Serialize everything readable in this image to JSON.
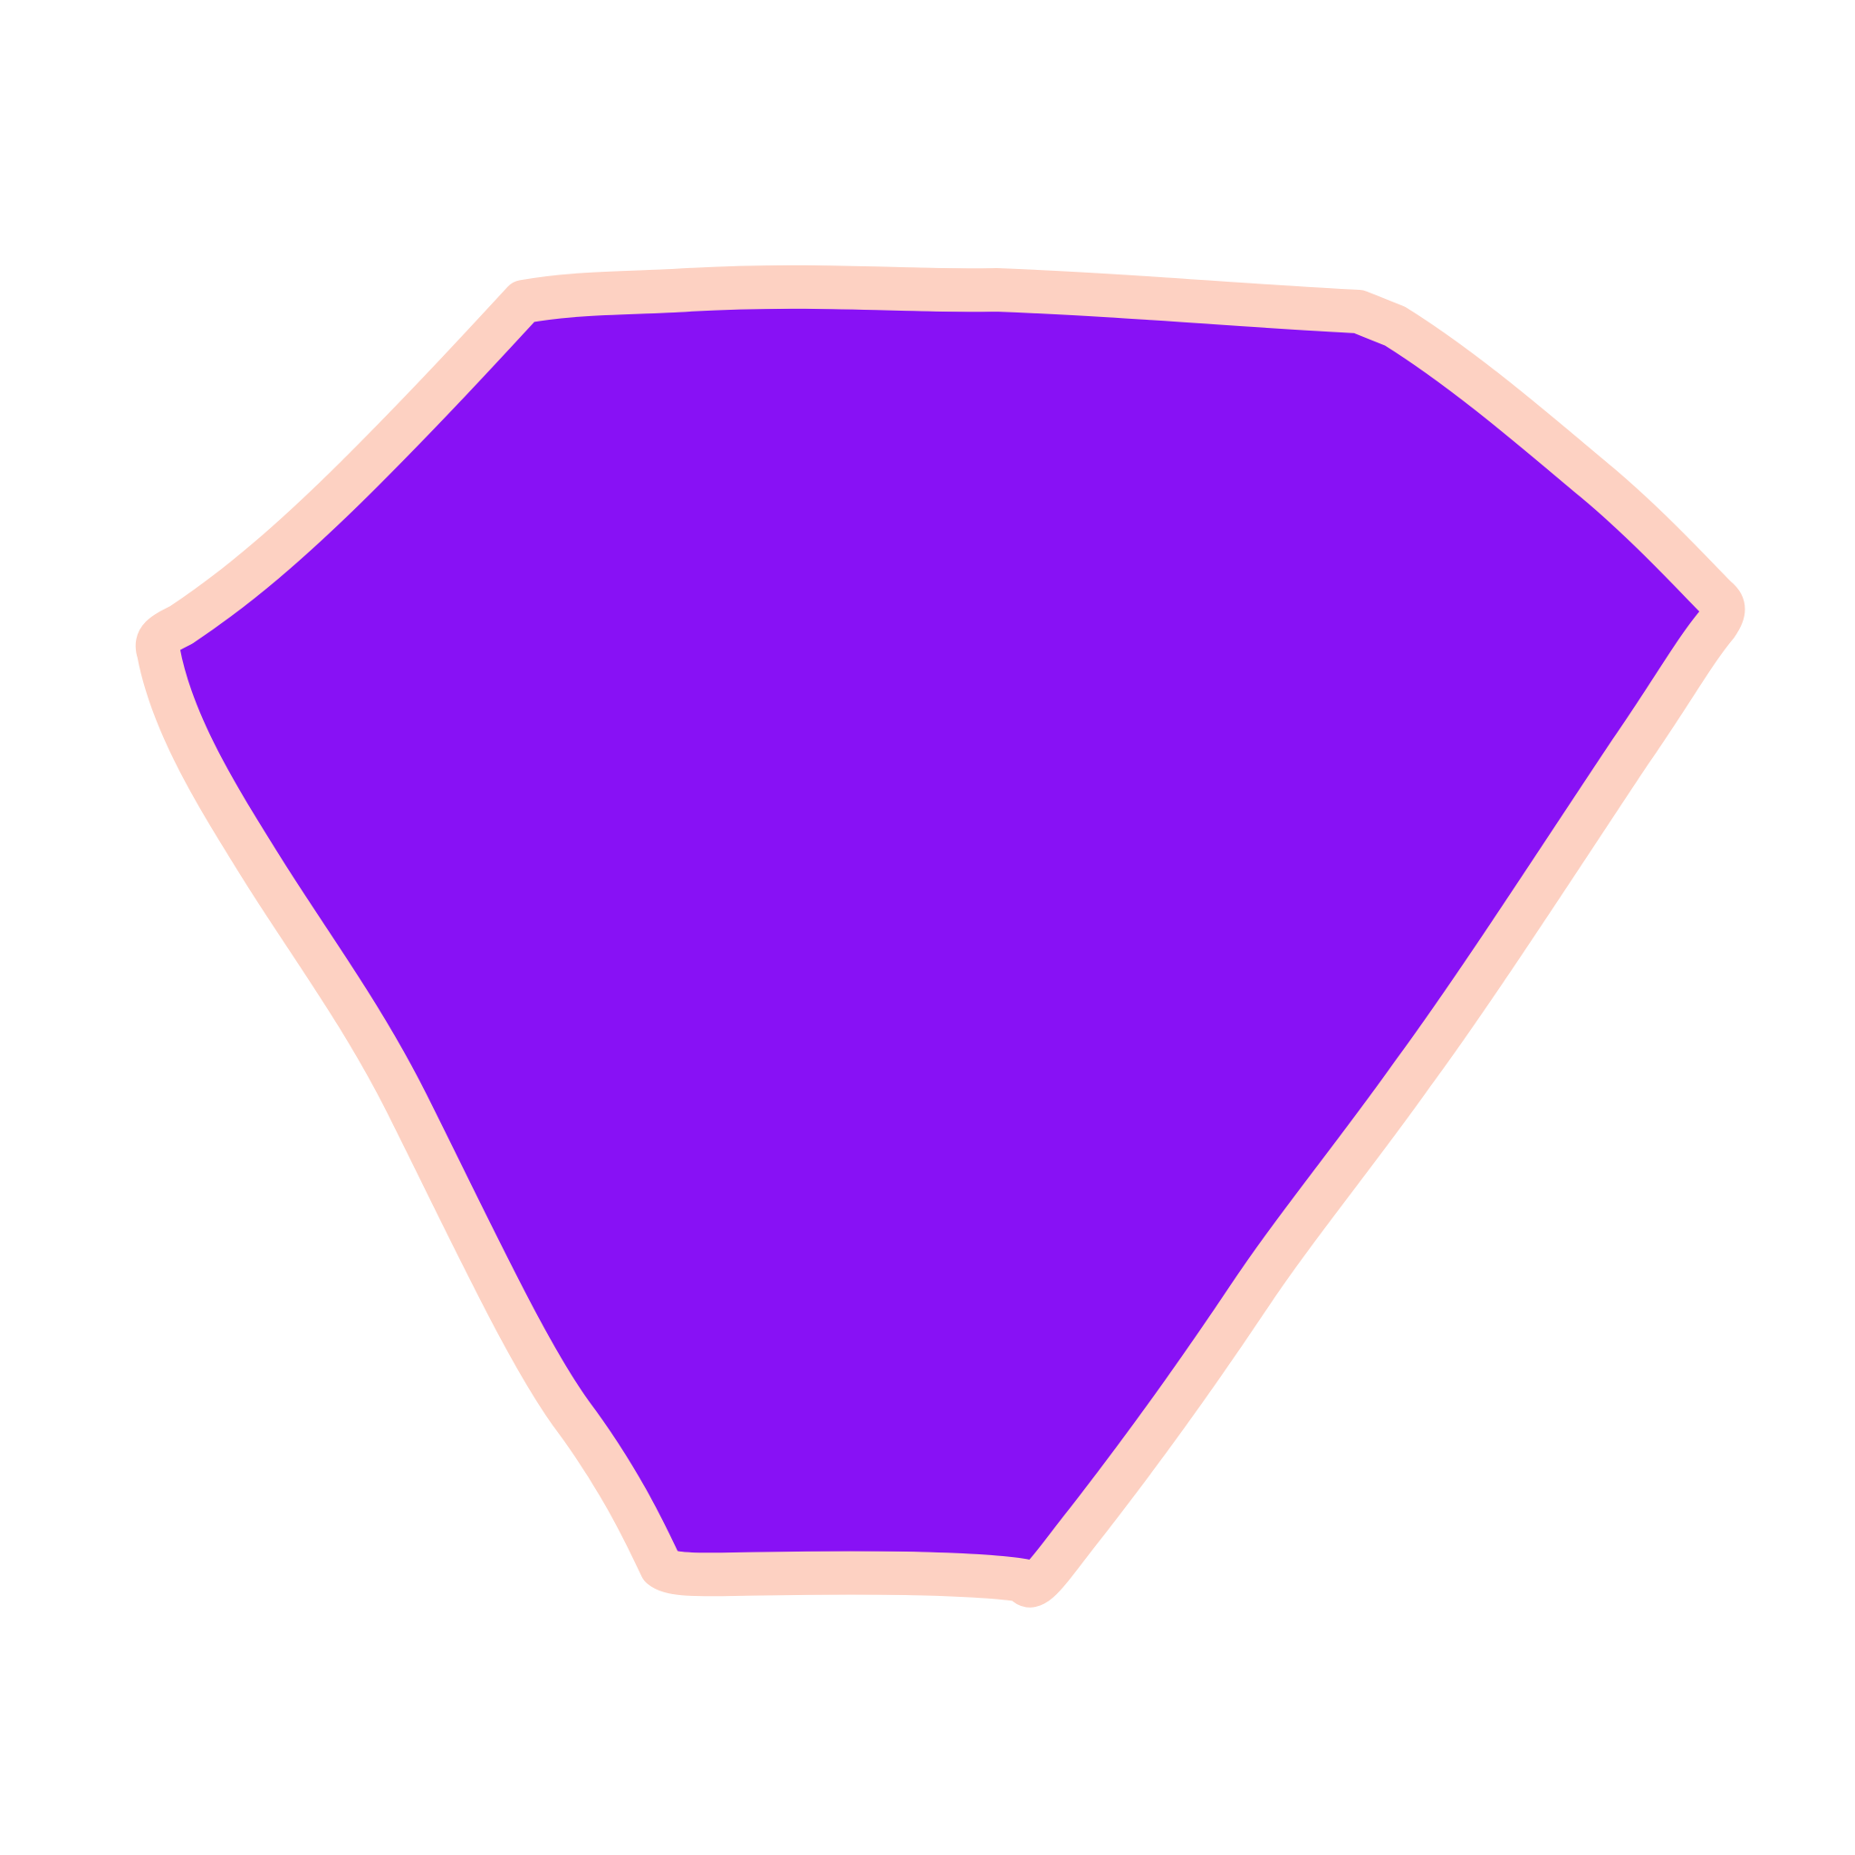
{
  "drawing": {
    "shape_kind": "hand-drawn irregular polygon",
    "fill_color": "#8811F5",
    "stroke_color": "#FDD1C2",
    "background_color": "#FFFFFF"
  }
}
